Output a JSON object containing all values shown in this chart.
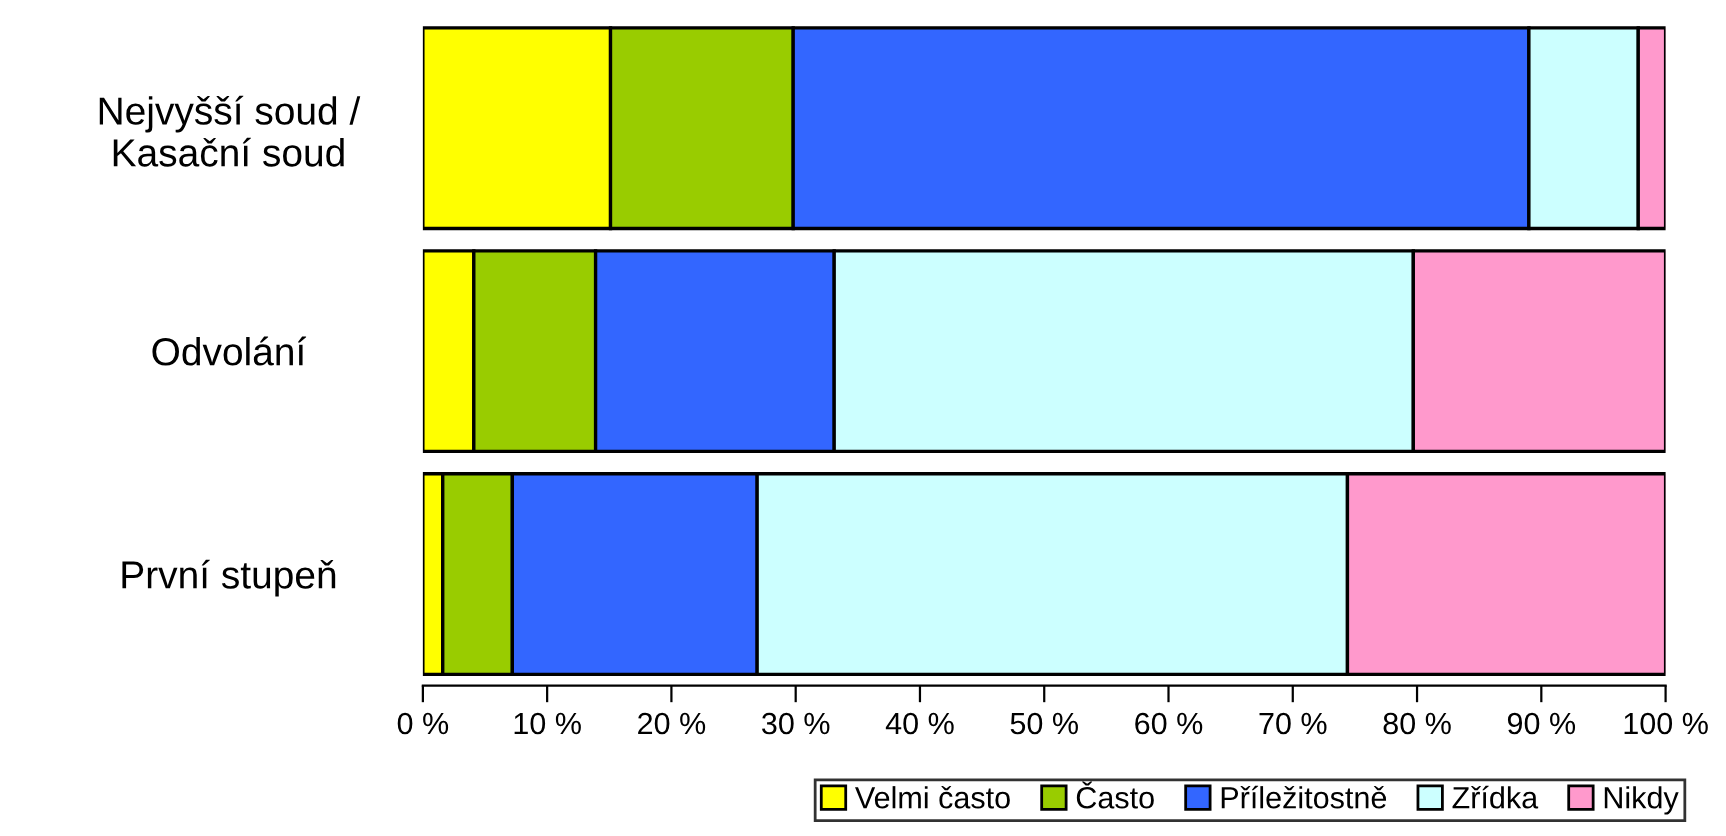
{
  "chart_data": {
    "type": "bar",
    "orientation": "horizontal",
    "stacked": true,
    "categories": [
      "Nejvyšší soud /\nKasační soud",
      "Odvolání",
      "První stupeň"
    ],
    "series": [
      {
        "name": "Velmi často",
        "color": "#ffff00",
        "values": [
          15.1,
          4.1,
          1.6
        ]
      },
      {
        "name": "Často",
        "color": "#99cc00",
        "values": [
          14.7,
          9.8,
          5.6
        ]
      },
      {
        "name": "Příležitostně",
        "color": "#3366ff",
        "values": [
          59.2,
          19.2,
          19.7
        ]
      },
      {
        "name": "Zřídka",
        "color": "#ccffff",
        "values": [
          8.8,
          46.6,
          47.5
        ]
      },
      {
        "name": "Nikdy",
        "color": "#ff99cc",
        "values": [
          2.2,
          20.3,
          25.6
        ]
      }
    ],
    "xlim": [
      0,
      100
    ],
    "xticks": [
      {
        "value": 0,
        "label": "0 %"
      },
      {
        "value": 10,
        "label": "10 %"
      },
      {
        "value": 20,
        "label": "20 %"
      },
      {
        "value": 30,
        "label": "30 %"
      },
      {
        "value": 40,
        "label": "40 %"
      },
      {
        "value": 50,
        "label": "50 %"
      },
      {
        "value": 60,
        "label": "60 %"
      },
      {
        "value": 70,
        "label": "70 %"
      },
      {
        "value": 80,
        "label": "80 %"
      },
      {
        "value": 90,
        "label": "90 %"
      },
      {
        "value": 100,
        "label": "100 %"
      }
    ],
    "grid": false,
    "legend": "bottom"
  }
}
